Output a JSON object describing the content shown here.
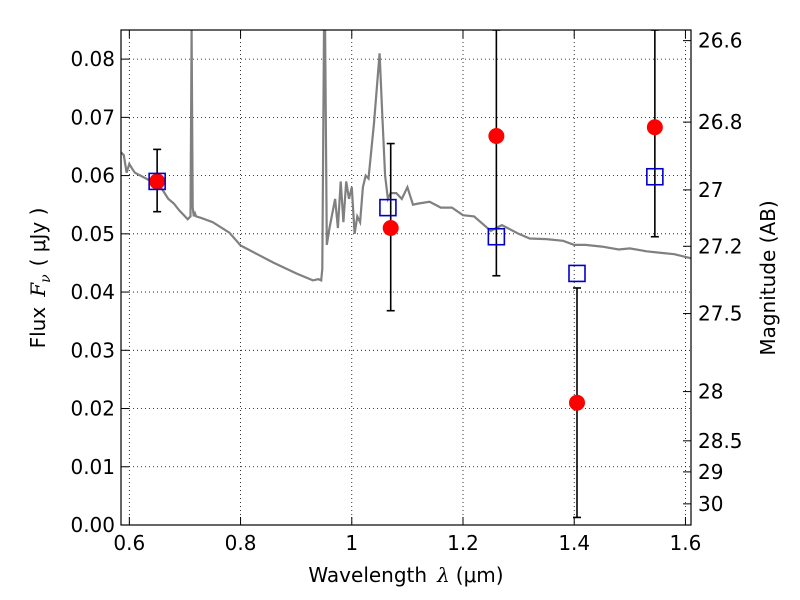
{
  "chart_data": {
    "type": "scatter",
    "title": "",
    "xlabel_prefix": "Wavelength",
    "xlabel_symbol": "λ",
    "xlabel_unit": "(μm)",
    "ylabel_prefix": "Flux",
    "ylabel_symbol": "F",
    "ylabel_sub": "ν",
    "ylabel_unit": "( μJy )",
    "y2label": "Magnitude (AB)",
    "xlim": [
      0.585,
      1.61
    ],
    "ylim": [
      0.0,
      0.085
    ],
    "grid": true,
    "x_ticks": [
      0.6,
      0.8,
      1.0,
      1.2,
      1.4,
      1.6
    ],
    "x_tick_labels": [
      "0.6",
      "0.8",
      "1",
      "1.2",
      "1.4",
      "1.6"
    ],
    "y_ticks": [
      0.0,
      0.01,
      0.02,
      0.03,
      0.04,
      0.05,
      0.06,
      0.07,
      0.08
    ],
    "y_tick_labels": [
      "0.00",
      "0.01",
      "0.02",
      "0.03",
      "0.04",
      "0.05",
      "0.06",
      "0.07",
      "0.08"
    ],
    "mag_ticks": [
      26.6,
      26.8,
      27,
      27.2,
      27.5,
      28,
      28.5,
      29,
      30
    ],
    "mag_tick_labels": [
      "26.6",
      "26.8",
      "27",
      "27.2",
      "27.5",
      "28",
      "28.5",
      "29",
      "30"
    ],
    "colors": {
      "observed": "#ff0000",
      "model": "#0000cc",
      "sed": "#808080",
      "errorbar": "#000000"
    },
    "series": [
      {
        "name": "model-sed",
        "kind": "line",
        "x": [
          0.585,
          0.59,
          0.595,
          0.6,
          0.605,
          0.61,
          0.62,
          0.63,
          0.64,
          0.65,
          0.66,
          0.67,
          0.68,
          0.69,
          0.7,
          0.705,
          0.71,
          0.712,
          0.714,
          0.716,
          0.718,
          0.72,
          0.73,
          0.75,
          0.78,
          0.8,
          0.83,
          0.86,
          0.9,
          0.93,
          0.94,
          0.945,
          0.947,
          0.95,
          0.952,
          0.955,
          0.96,
          0.97,
          0.975,
          0.98,
          0.985,
          0.99,
          0.995,
          1.0,
          1.005,
          1.01,
          1.015,
          1.02,
          1.025,
          1.03,
          1.04,
          1.045,
          1.05,
          1.055,
          1.06,
          1.065,
          1.07,
          1.08,
          1.09,
          1.1,
          1.11,
          1.12,
          1.14,
          1.16,
          1.18,
          1.2,
          1.22,
          1.25,
          1.27,
          1.3,
          1.32,
          1.35,
          1.38,
          1.4,
          1.42,
          1.45,
          1.48,
          1.5,
          1.53,
          1.55,
          1.58,
          1.61
        ],
        "y": [
          0.064,
          0.0635,
          0.0605,
          0.062,
          0.0612,
          0.0605,
          0.06,
          0.0595,
          0.059,
          0.0585,
          0.0575,
          0.056,
          0.0552,
          0.054,
          0.053,
          0.0525,
          0.053,
          0.085,
          0.0545,
          0.053,
          0.0535,
          0.053,
          0.0527,
          0.052,
          0.0502,
          0.048,
          0.0465,
          0.045,
          0.0432,
          0.042,
          0.0422,
          0.042,
          0.044,
          0.085,
          0.085,
          0.0481,
          0.051,
          0.056,
          0.051,
          0.059,
          0.052,
          0.059,
          0.056,
          0.058,
          0.05,
          0.053,
          0.052,
          0.058,
          0.06,
          0.0595,
          0.069,
          0.075,
          0.081,
          0.07,
          0.06,
          0.056,
          0.057,
          0.057,
          0.056,
          0.058,
          0.055,
          0.0552,
          0.0555,
          0.0545,
          0.0545,
          0.0532,
          0.053,
          0.0505,
          0.0515,
          0.05,
          0.0492,
          0.0491,
          0.0488,
          0.0481,
          0.0481,
          0.0478,
          0.0473,
          0.0475,
          0.047,
          0.0468,
          0.0465,
          0.0458
        ]
      },
      {
        "name": "observed-flux",
        "kind": "points-with-errors",
        "x": [
          0.65,
          1.07,
          1.26,
          1.405,
          1.545
        ],
        "y": [
          0.059,
          0.051,
          0.0668,
          0.021,
          0.0683
        ],
        "yerr_low": [
          0.0538,
          0.0368,
          0.0428,
          0.0013,
          0.0495
        ],
        "yerr_high": [
          0.0645,
          0.0655,
          0.085,
          0.0407,
          0.085
        ]
      },
      {
        "name": "model-flux",
        "kind": "open-squares",
        "x": [
          0.65,
          1.065,
          1.26,
          1.405,
          1.545
        ],
        "y": [
          0.059,
          0.0545,
          0.0495,
          0.0432,
          0.0598
        ]
      }
    ]
  }
}
